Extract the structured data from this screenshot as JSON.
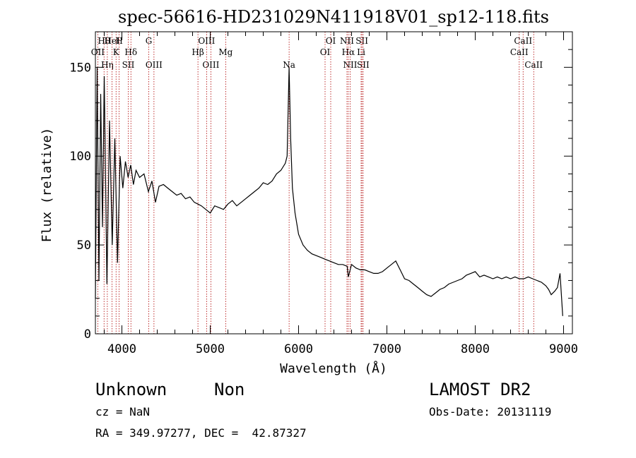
{
  "chart_data": {
    "type": "line",
    "title": "spec-56616-HD231029N411918V01_sp12-118.fits",
    "xlabel": "Wavelength (Å)",
    "ylabel": "Flux (relative)",
    "xlim": [
      3700,
      9100
    ],
    "ylim": [
      0,
      170
    ],
    "xticks": [
      4000,
      5000,
      6000,
      7000,
      8000,
      9000
    ],
    "yticks": [
      0,
      50,
      100,
      150
    ],
    "grid": false,
    "series": [
      {
        "x": [
          3700,
          3720,
          3740,
          3760,
          3780,
          3800,
          3830,
          3860,
          3890,
          3920,
          3950,
          3980,
          4010,
          4040,
          4070,
          4100,
          4130,
          4160,
          4200,
          4250,
          4300,
          4340,
          4380,
          4420,
          4470,
          4520,
          4570,
          4620,
          4670,
          4720,
          4770,
          4820,
          4861,
          4900,
          4950,
          5000,
          5050,
          5100,
          5150,
          5200,
          5250,
          5300,
          5350,
          5400,
          5450,
          5500,
          5550,
          5600,
          5650,
          5700,
          5750,
          5800,
          5850,
          5870,
          5893,
          5910,
          5930,
          5960,
          6000,
          6050,
          6100,
          6150,
          6200,
          6250,
          6300,
          6350,
          6400,
          6450,
          6500,
          6550,
          6563,
          6600,
          6650,
          6700,
          6750,
          6800,
          6850,
          6900,
          6950,
          7000,
          7050,
          7100,
          7150,
          7200,
          7250,
          7300,
          7350,
          7400,
          7450,
          7500,
          7550,
          7600,
          7650,
          7700,
          7750,
          7800,
          7850,
          7900,
          7950,
          8000,
          8050,
          8100,
          8150,
          8200,
          8250,
          8300,
          8350,
          8400,
          8450,
          8500,
          8550,
          8600,
          8650,
          8700,
          8750,
          8800,
          8830,
          8860,
          8900,
          8930,
          8960,
          8990
        ],
        "y": [
          20,
          150,
          30,
          135,
          60,
          145,
          28,
          120,
          50,
          110,
          40,
          100,
          82,
          97,
          88,
          95,
          84,
          92,
          88,
          90,
          80,
          86,
          74,
          83,
          84,
          82,
          80,
          78,
          79,
          76,
          77,
          74,
          73,
          72,
          70,
          68,
          72,
          71,
          70,
          73,
          75,
          72,
          74,
          76,
          78,
          80,
          82,
          85,
          84,
          86,
          90,
          92,
          96,
          100,
          150,
          110,
          82,
          68,
          56,
          50,
          47,
          45,
          44,
          43,
          42,
          41,
          40,
          39,
          39,
          38,
          32,
          39,
          37,
          36,
          36,
          35,
          34,
          34,
          35,
          37,
          39,
          41,
          36,
          31,
          30,
          28,
          26,
          24,
          22,
          21,
          23,
          25,
          26,
          28,
          29,
          30,
          31,
          33,
          34,
          35,
          32,
          33,
          32,
          31,
          32,
          31,
          32,
          31,
          32,
          31,
          31,
          32,
          31,
          30,
          29,
          27,
          25,
          22,
          24,
          26,
          34,
          10
        ]
      }
    ],
    "line_markers": [
      {
        "label": "Hθ",
        "wavelength": 3798
      },
      {
        "label": "OII",
        "wavelength": 3727
      },
      {
        "label": "Hη",
        "wavelength": 3835
      },
      {
        "label": "HeI",
        "wavelength": 3889
      },
      {
        "label": "K",
        "wavelength": 3934
      },
      {
        "label": "SII",
        "wavelength": 4072
      },
      {
        "label": "H",
        "wavelength": 3969
      },
      {
        "label": "Hδ",
        "wavelength": 4102
      },
      {
        "label": "OIII",
        "wavelength": 4363
      },
      {
        "label": "G",
        "wavelength": 4304
      },
      {
        "label": "Hβ",
        "wavelength": 4861
      },
      {
        "label": "OIII",
        "wavelength": 5007
      },
      {
        "label": "OIII",
        "wavelength": 4959
      },
      {
        "label": "Mg",
        "wavelength": 5175
      },
      {
        "label": "Na",
        "wavelength": 5893
      },
      {
        "label": "OI",
        "wavelength": 6364
      },
      {
        "label": "OI",
        "wavelength": 6300
      },
      {
        "label": "NII",
        "wavelength": 6584
      },
      {
        "label": "SII",
        "wavelength": 6717
      },
      {
        "label": "Hα",
        "wavelength": 6563
      },
      {
        "label": "SII",
        "wavelength": 6731
      },
      {
        "label": "NII",
        "wavelength": 6548
      },
      {
        "label": "Li",
        "wavelength": 6708
      },
      {
        "label": "CaII",
        "wavelength": 8662
      },
      {
        "label": "CaII",
        "wavelength": 8542
      },
      {
        "label": "CaII",
        "wavelength": 8498
      }
    ]
  },
  "info": {
    "class": "Unknown",
    "subclass": "Non",
    "release": "LAMOST DR2",
    "cz": "cz = NaN",
    "obs_date": "Obs-Date: 20131119",
    "coords": "RA = 349.97277, DEC =  42.87327"
  }
}
